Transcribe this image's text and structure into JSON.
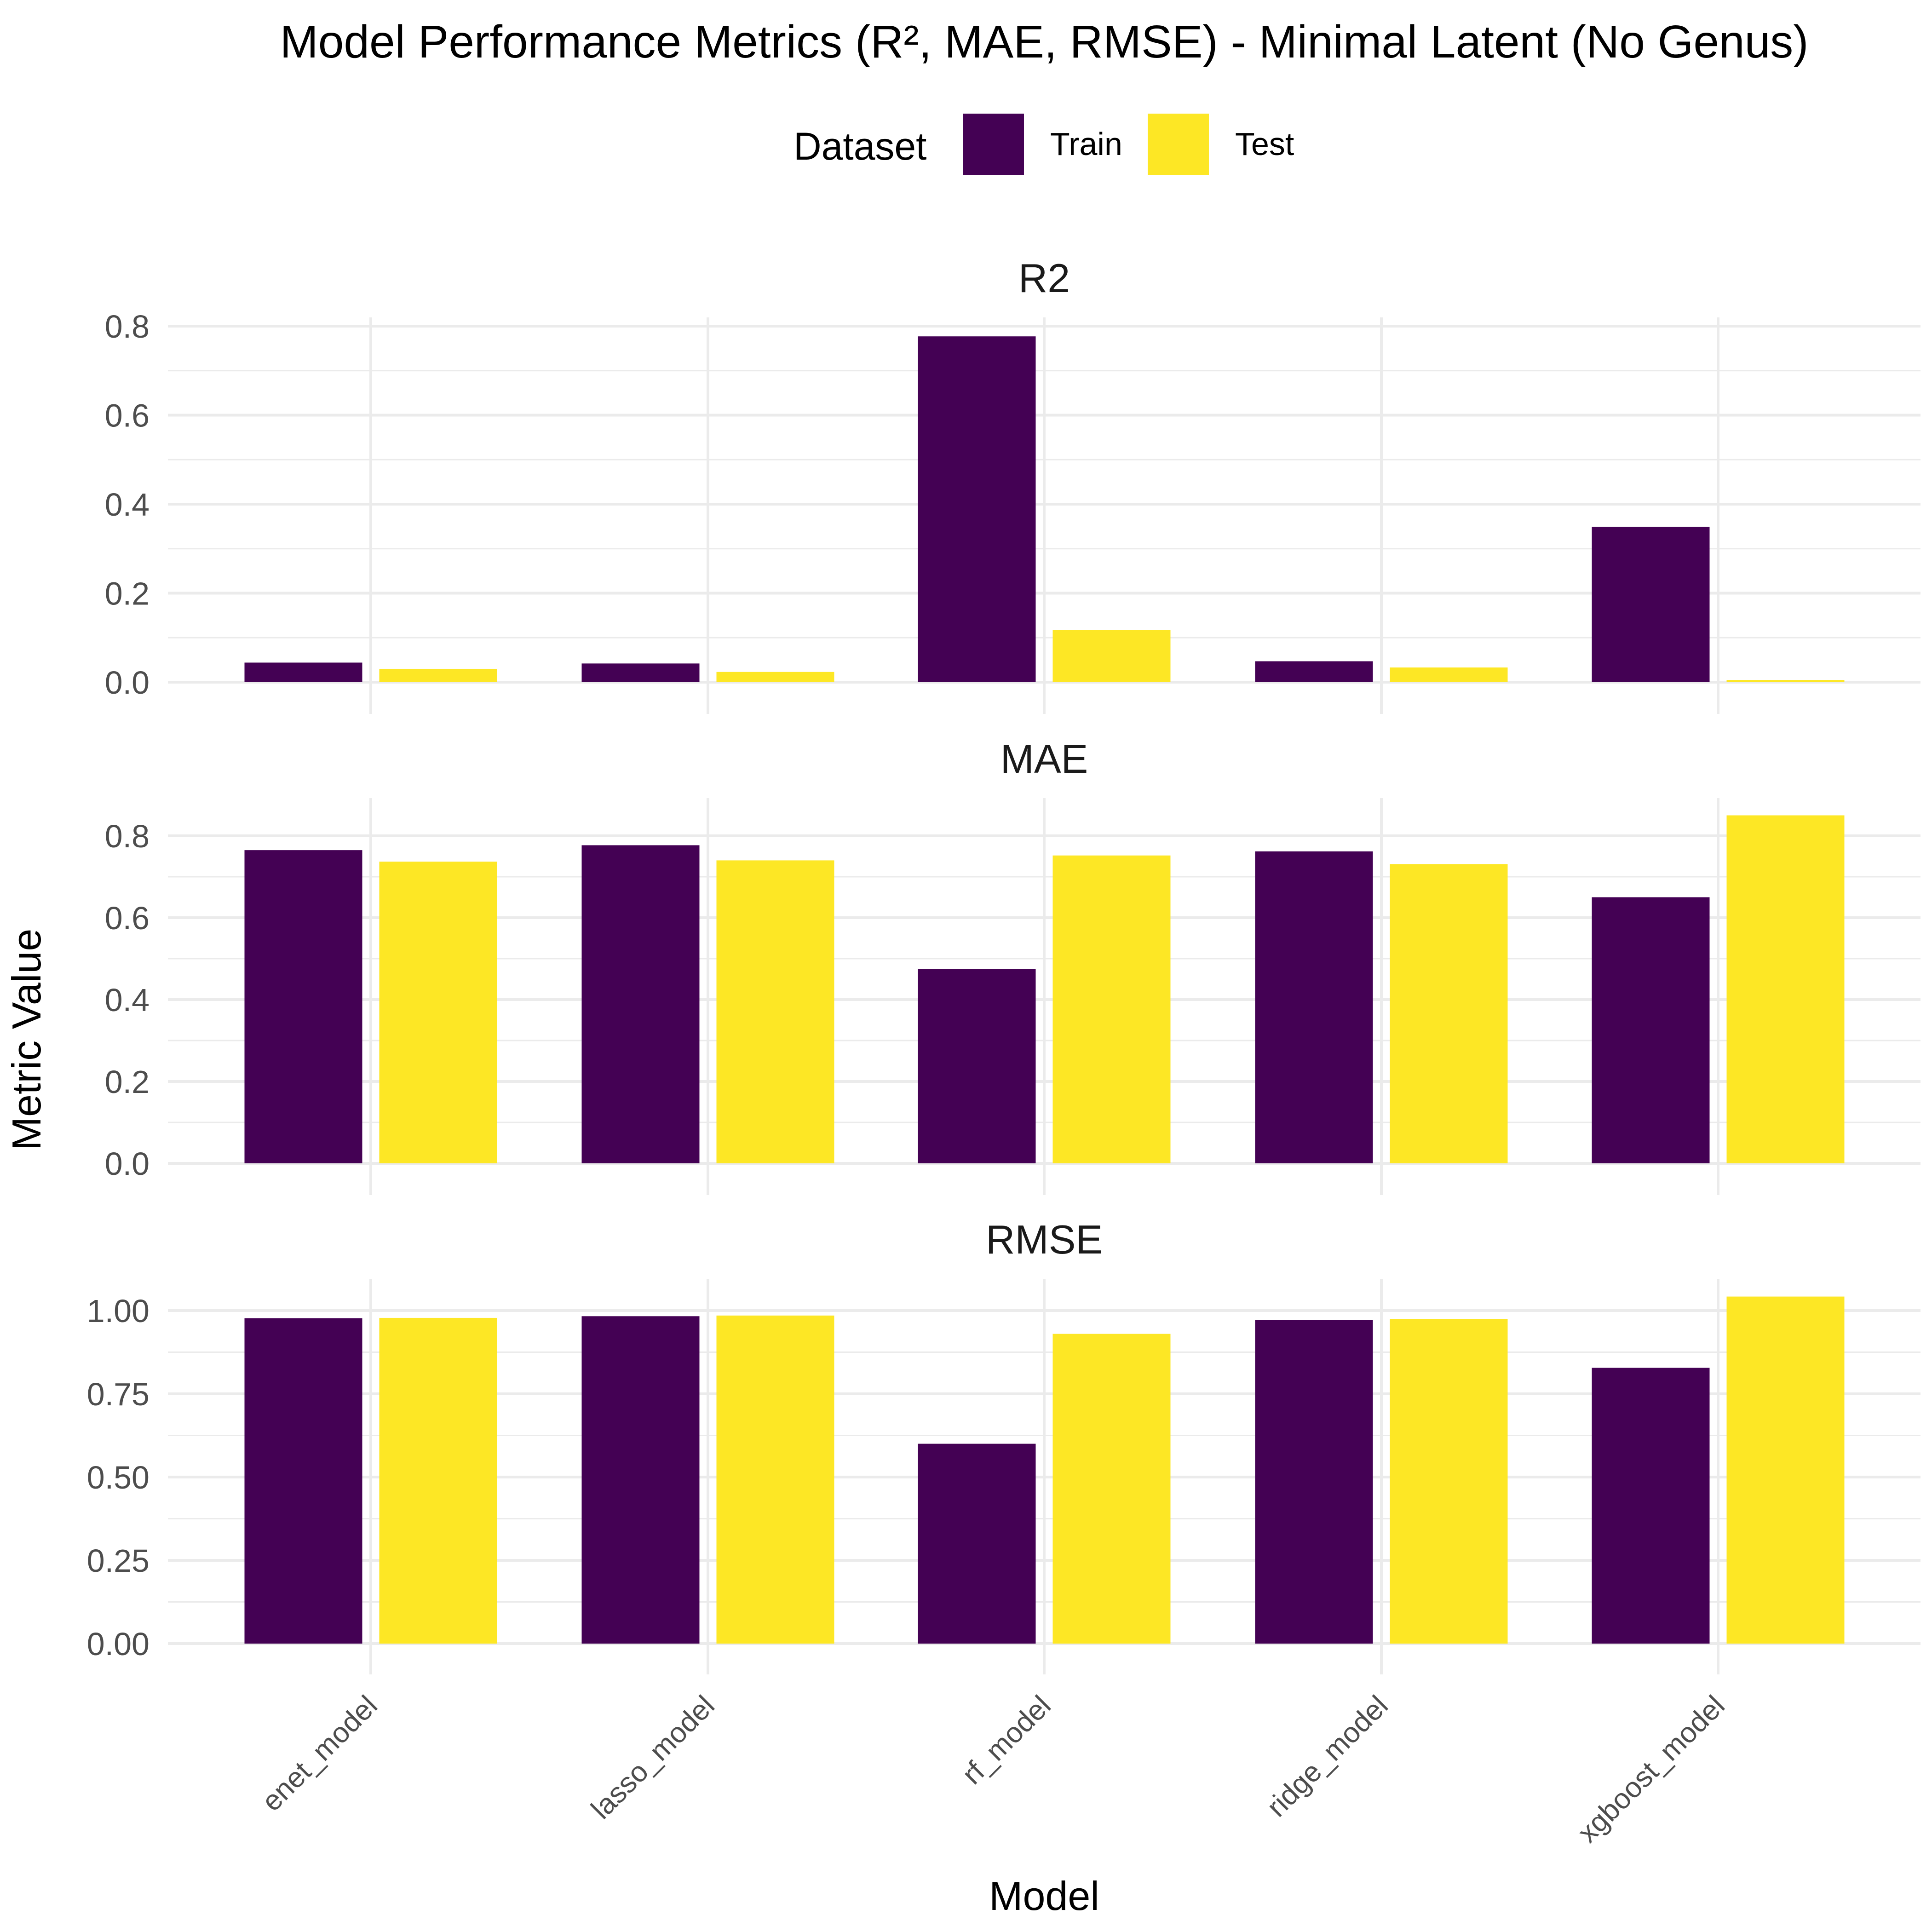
{
  "chart_data": {
    "type": "bar",
    "title": "Model Performance Metrics (R², MAE, RMSE) - Minimal Latent (No Genus)",
    "xlabel": "Model",
    "ylabel": "Metric Value",
    "legend": {
      "title": "Dataset",
      "placement": "top",
      "entries": [
        {
          "name": "Train",
          "color": "#440154"
        },
        {
          "name": "Test",
          "color": "#FDE725"
        }
      ]
    },
    "categories": [
      "enet_model",
      "lasso_model",
      "rf_model",
      "ridge_model",
      "xgboost_model"
    ],
    "grid": true,
    "facets": [
      {
        "name": "R2",
        "ylim": [
          0,
          0.8
        ],
        "yticks": [
          0.0,
          0.2,
          0.4,
          0.6,
          0.8
        ],
        "ytick_labels": [
          "0.0",
          "0.2",
          "0.4",
          "0.6",
          "0.8"
        ],
        "series": [
          {
            "name": "Train",
            "values": [
              0.044,
              0.042,
              0.777,
              0.047,
              0.349
            ]
          },
          {
            "name": "Test",
            "values": [
              0.03,
              0.023,
              0.117,
              0.033,
              0.005
            ]
          }
        ]
      },
      {
        "name": "MAE",
        "ylim": [
          0,
          0.8
        ],
        "yticks": [
          0.0,
          0.2,
          0.4,
          0.6,
          0.8
        ],
        "ytick_labels": [
          "0.0",
          "0.2",
          "0.4",
          "0.6",
          "0.8"
        ],
        "series": [
          {
            "name": "Train",
            "values": [
              0.765,
              0.777,
              0.475,
              0.762,
              0.65
            ]
          },
          {
            "name": "Test",
            "values": [
              0.737,
              0.74,
              0.752,
              0.731,
              0.85
            ]
          }
        ]
      },
      {
        "name": "RMSE",
        "ylim": [
          0,
          1.0
        ],
        "yticks": [
          0.0,
          0.25,
          0.5,
          0.75,
          1.0
        ],
        "ytick_labels": [
          "0.00",
          "0.25",
          "0.50",
          "0.75",
          "1.00"
        ],
        "series": [
          {
            "name": "Train",
            "values": [
              0.977,
              0.983,
              0.6,
              0.972,
              0.828
            ]
          },
          {
            "name": "Test",
            "values": [
              0.978,
              0.985,
              0.93,
              0.975,
              1.042
            ]
          }
        ]
      }
    ]
  }
}
